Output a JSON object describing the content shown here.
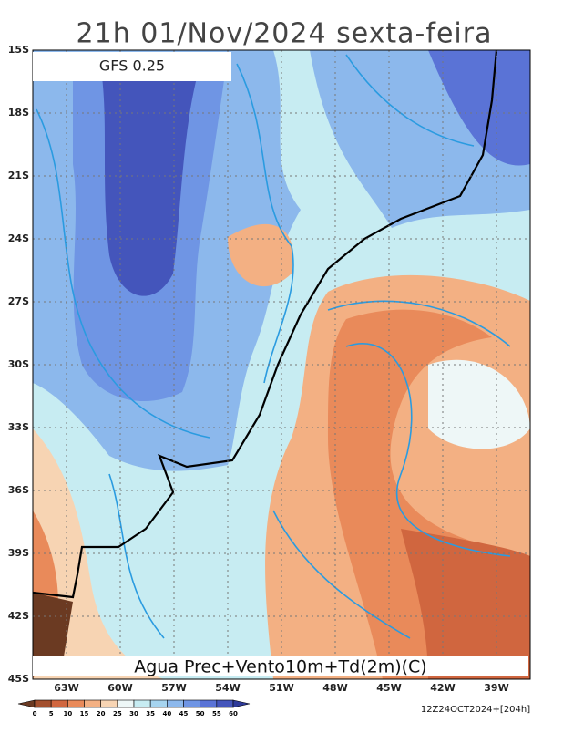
{
  "title": "21h 01/Nov/2024 sexta-feira",
  "model": "GFS 0.25",
  "latitude_labels": [
    "15S",
    "18S",
    "21S",
    "24S",
    "27S",
    "30S",
    "33S",
    "36S",
    "39S",
    "42S",
    "45S"
  ],
  "longitude_labels": [
    "63W",
    "60W",
    "57W",
    "54W",
    "51W",
    "48W",
    "45W",
    "42W",
    "39W"
  ],
  "caption": "Agua Prec+Vento10m+Td(2m)(C)",
  "colorbar": {
    "ticks": [
      0,
      5,
      10,
      15,
      20,
      25,
      30,
      35,
      40,
      45,
      50,
      55,
      60
    ],
    "colors": [
      "#6b3a22",
      "#a3502e",
      "#d0663f",
      "#e98a5a",
      "#f3b083",
      "#f7d4b3",
      "#eef7f7",
      "#c7ecf2",
      "#a6d4ef",
      "#8cb8ec",
      "#6f95e4",
      "#5a73d6",
      "#4455bb",
      "#2e3a99"
    ]
  },
  "run": "12Z24OCT2024+[204h]"
}
